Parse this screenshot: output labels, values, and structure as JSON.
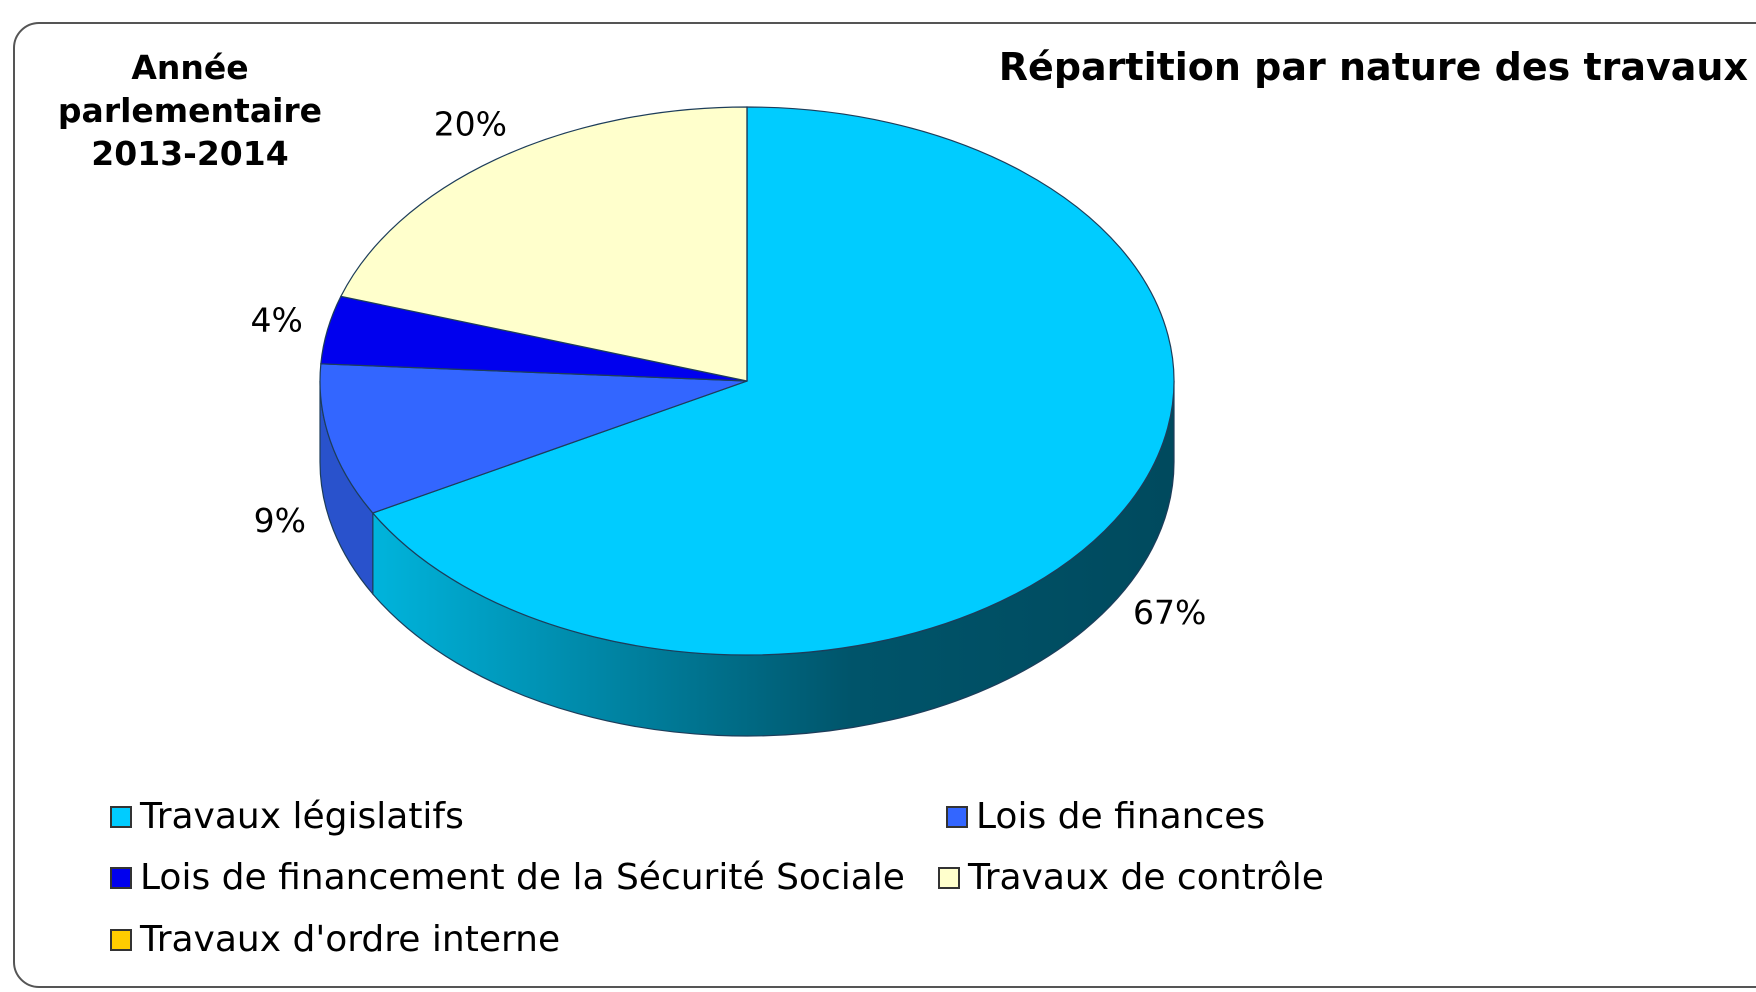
{
  "chart_data": {
    "type": "pie",
    "title": "Répartition par nature des travaux",
    "subtitle": "Année\nparlementaire\n2013-2014",
    "series": [
      {
        "name": "Travaux législatifs",
        "color": "#00ccff",
        "values": [
          67
        ]
      },
      {
        "name": "Lois de finances",
        "color": "#3366ff",
        "values": [
          9
        ]
      },
      {
        "name": "Lois de financement de la Sécurité Sociale",
        "color": "#0000ee",
        "values": [
          4
        ]
      },
      {
        "name": "Travaux de contrôle",
        "color": "#ffffcc",
        "values": [
          20
        ]
      },
      {
        "name": "Travaux d'ordre interne",
        "color": "#ffcc00",
        "values": [
          0
        ]
      }
    ],
    "value_labels": [
      "67%",
      "9%",
      "4%",
      "20%",
      null
    ]
  }
}
